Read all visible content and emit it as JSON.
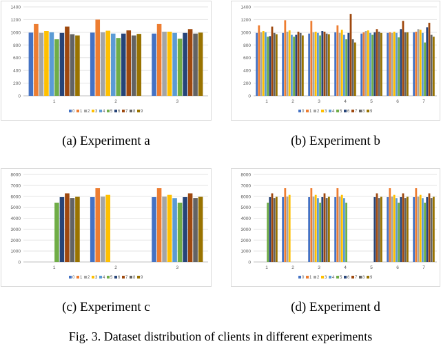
{
  "figure_caption": "Fig. 3.  Dataset distribution of clients in different experiments",
  "legend_colors": [
    "#4472C4",
    "#ED7D31",
    "#A5A5A5",
    "#FFC000",
    "#5B9BD5",
    "#70AD47",
    "#264478",
    "#9E480E",
    "#636363",
    "#997300"
  ],
  "legend_labels": [
    "0",
    "1",
    "2",
    "3",
    "4",
    "5",
    "6",
    "7",
    "8",
    "9"
  ],
  "chart_data": [
    {
      "type": "bar",
      "caption": "(a)  Experiment a",
      "categories": [
        "1",
        "2",
        "3"
      ],
      "ylim": [
        0,
        1400
      ],
      "yticks": [
        "0",
        "200",
        "400",
        "600",
        "800",
        "1000",
        "1200",
        "1400"
      ],
      "series": [
        {
          "name": "0",
          "values": [
            995,
            995,
            980
          ]
        },
        {
          "name": "1",
          "values": [
            1130,
            1200,
            1130
          ]
        },
        {
          "name": "2",
          "values": [
            990,
            1000,
            1010
          ]
        },
        {
          "name": "3",
          "values": [
            1020,
            1025,
            1010
          ]
        },
        {
          "name": "4",
          "values": [
            1000,
            980,
            990
          ]
        },
        {
          "name": "5",
          "values": [
            890,
            910,
            900
          ]
        },
        {
          "name": "6",
          "values": [
            990,
            980,
            990
          ]
        },
        {
          "name": "7",
          "values": [
            1090,
            1030,
            1050
          ]
        },
        {
          "name": "8",
          "values": [
            970,
            950,
            980
          ]
        },
        {
          "name": "9",
          "values": [
            950,
            975,
            995
          ]
        }
      ]
    },
    {
      "type": "bar",
      "caption": "(b)  Experiment b",
      "categories": [
        "1",
        "2",
        "3",
        "4",
        "5",
        "6",
        "7"
      ],
      "ylim": [
        0,
        1400
      ],
      "yticks": [
        "0",
        "200",
        "400",
        "600",
        "800",
        "1000",
        "1200",
        "1400"
      ],
      "series": [
        {
          "name": "0",
          "values": [
            990,
            990,
            980,
            1000,
            980,
            990,
            1000
          ]
        },
        {
          "name": "1",
          "values": [
            1110,
            1190,
            1180,
            1110,
            1000,
            1000,
            1010
          ]
        },
        {
          "name": "2",
          "values": [
            1000,
            1010,
            1000,
            990,
            1020,
            990,
            1050
          ]
        },
        {
          "name": "3",
          "values": [
            1020,
            1030,
            1010,
            1040,
            1030,
            1010,
            1040
          ]
        },
        {
          "name": "4",
          "values": [
            1000,
            960,
            990,
            960,
            990,
            990,
            990
          ]
        },
        {
          "name": "5",
          "values": [
            930,
            930,
            950,
            890,
            960,
            920,
            840
          ]
        },
        {
          "name": "6",
          "values": [
            940,
            960,
            1020,
            990,
            1000,
            1050,
            1080
          ]
        },
        {
          "name": "7",
          "values": [
            1090,
            1010,
            1010,
            1290,
            1050,
            1180,
            1150
          ]
        },
        {
          "name": "8",
          "values": [
            990,
            990,
            980,
            890,
            1010,
            1000,
            960
          ]
        },
        {
          "name": "9",
          "values": [
            970,
            950,
            970,
            840,
            990,
            1000,
            930
          ]
        }
      ]
    },
    {
      "type": "bar",
      "caption": "(c)  Experiment c",
      "categories": [
        "1",
        "2",
        "3"
      ],
      "ylim": [
        0,
        8000
      ],
      "yticks": [
        "0",
        "1000",
        "2000",
        "3000",
        "4000",
        "5000",
        "6000",
        "7000",
        "8000"
      ],
      "series": [
        {
          "name": "0",
          "values": [
            0,
            5920,
            5920
          ]
        },
        {
          "name": "1",
          "values": [
            0,
            6740,
            6740
          ]
        },
        {
          "name": "2",
          "values": [
            0,
            5960,
            5960
          ]
        },
        {
          "name": "3",
          "values": [
            0,
            6130,
            6130
          ]
        },
        {
          "name": "4",
          "values": [
            0,
            0,
            5840
          ]
        },
        {
          "name": "5",
          "values": [
            5420,
            0,
            5420
          ]
        },
        {
          "name": "6",
          "values": [
            5920,
            0,
            5920
          ]
        },
        {
          "name": "7",
          "values": [
            6270,
            0,
            6270
          ]
        },
        {
          "name": "8",
          "values": [
            5850,
            0,
            5850
          ]
        },
        {
          "name": "9",
          "values": [
            5950,
            0,
            5950
          ]
        }
      ]
    },
    {
      "type": "bar",
      "caption": "(d)  Experiment d",
      "categories": [
        "1",
        "2",
        "3",
        "4",
        "5",
        "6",
        "7"
      ],
      "ylim": [
        0,
        8000
      ],
      "yticks": [
        "0",
        "1000",
        "2000",
        "3000",
        "4000",
        "5000",
        "6000",
        "7000",
        "8000"
      ],
      "series": [
        {
          "name": "0",
          "values": [
            0,
            5920,
            5920,
            5920,
            0,
            5920,
            5920
          ]
        },
        {
          "name": "1",
          "values": [
            0,
            6740,
            6740,
            6740,
            0,
            6740,
            6740
          ]
        },
        {
          "name": "2",
          "values": [
            0,
            5960,
            5960,
            5960,
            0,
            5960,
            5960
          ]
        },
        {
          "name": "3",
          "values": [
            0,
            6130,
            6130,
            6130,
            0,
            6130,
            6130
          ]
        },
        {
          "name": "4",
          "values": [
            0,
            0,
            5840,
            5840,
            0,
            5840,
            5840
          ]
        },
        {
          "name": "5",
          "values": [
            5420,
            0,
            5420,
            5420,
            0,
            5420,
            5420
          ]
        },
        {
          "name": "6",
          "values": [
            5920,
            0,
            5920,
            0,
            5920,
            5920,
            5920
          ]
        },
        {
          "name": "7",
          "values": [
            6270,
            0,
            6270,
            0,
            6270,
            6270,
            6270
          ]
        },
        {
          "name": "8",
          "values": [
            5850,
            0,
            5850,
            0,
            5850,
            5850,
            5850
          ]
        },
        {
          "name": "9",
          "values": [
            5950,
            0,
            5950,
            0,
            5950,
            5950,
            5950
          ]
        }
      ]
    }
  ]
}
